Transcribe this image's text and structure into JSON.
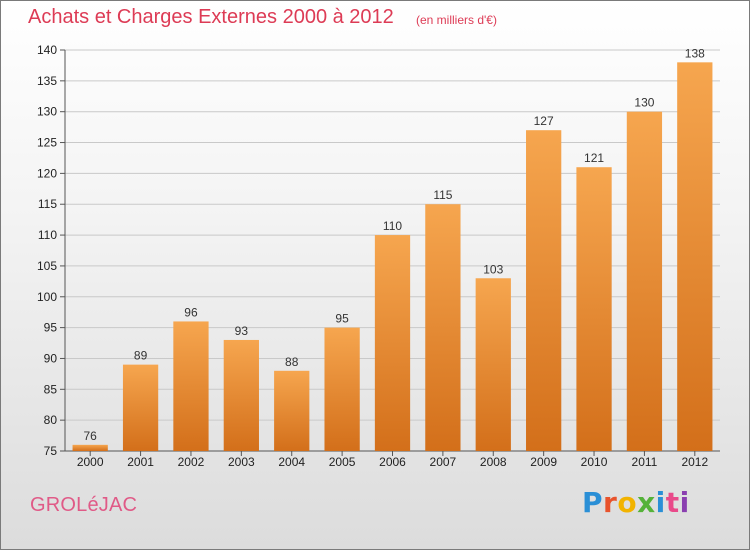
{
  "chart_data": {
    "type": "bar",
    "title": "Achats et Charges Externes 2000 à 2012",
    "subtitle": "(en milliers d'€)",
    "categories": [
      "2000",
      "2001",
      "2002",
      "2003",
      "2004",
      "2005",
      "2006",
      "2007",
      "2008",
      "2009",
      "2010",
      "2011",
      "2012"
    ],
    "values": [
      76,
      89,
      96,
      93,
      88,
      95,
      110,
      115,
      103,
      127,
      121,
      130,
      138
    ],
    "ylim": [
      75,
      140
    ],
    "yticks": [
      75,
      80,
      85,
      90,
      95,
      100,
      105,
      110,
      115,
      120,
      125,
      130,
      135,
      140
    ],
    "grid": true,
    "colors": {
      "bar_top": "#f6a64f",
      "bar_bottom": "#d36f1a",
      "grid": "#c9c9c9"
    }
  },
  "footer": {
    "location": "GROLéJAC",
    "brand": "Proxiti",
    "brand_colors": [
      "#2a8fd6",
      "#e8532c",
      "#f2b300",
      "#55b23a",
      "#2a8fd6",
      "#e94a8a",
      "#8a3fb0"
    ]
  }
}
